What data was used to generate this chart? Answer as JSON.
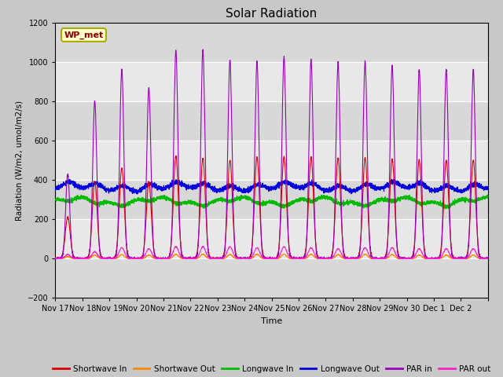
{
  "title": "Solar Radiation",
  "ylabel": "Radiation (W/m2, umol/m2/s)",
  "xlabel": "Time",
  "ylim": [
    -200,
    1200
  ],
  "yticks": [
    -200,
    0,
    200,
    400,
    600,
    800,
    1000,
    1200
  ],
  "series": {
    "shortwave_in": {
      "label": "Shortwave In",
      "color": "#dd0000",
      "lw": 0.8
    },
    "shortwave_out": {
      "label": "Shortwave Out",
      "color": "#ff8800",
      "lw": 0.8
    },
    "longwave_in": {
      "label": "Longwave In",
      "color": "#00bb00",
      "lw": 0.8
    },
    "longwave_out": {
      "label": "Longwave Out",
      "color": "#0000dd",
      "lw": 0.8
    },
    "par_in": {
      "label": "PAR in",
      "color": "#9900bb",
      "lw": 0.8
    },
    "par_out": {
      "label": "PAR out",
      "color": "#ff22cc",
      "lw": 0.8
    }
  },
  "x_tick_labels": [
    "Nov 17",
    "Nov 18",
    "Nov 19",
    "Nov 20",
    "Nov 21",
    "Nov 22",
    "Nov 23",
    "Nov 24",
    "Nov 25",
    "Nov 26",
    "Nov 27",
    "Nov 28",
    "Nov 29",
    "Nov 30",
    "Dec 1",
    "Dec 2"
  ],
  "station_label": "WP_met",
  "n_days": 16,
  "points_per_day": 288,
  "sw_in_peaks": [
    210,
    390,
    460,
    390,
    520,
    510,
    500,
    515,
    520,
    515,
    510,
    510,
    505,
    500,
    500,
    500
  ],
  "sw_out_peaks": [
    10,
    18,
    20,
    18,
    22,
    22,
    20,
    22,
    22,
    22,
    20,
    22,
    20,
    18,
    18,
    18
  ],
  "par_in_peaks": [
    430,
    800,
    960,
    870,
    1060,
    1060,
    1010,
    1000,
    1025,
    1010,
    1000,
    1000,
    980,
    960,
    960,
    960
  ],
  "par_out_peaks": [
    20,
    35,
    55,
    50,
    60,
    60,
    60,
    55,
    60,
    55,
    50,
    55,
    55,
    50,
    50,
    50
  ],
  "lw_in_base": 300,
  "lw_out_base": 350
}
